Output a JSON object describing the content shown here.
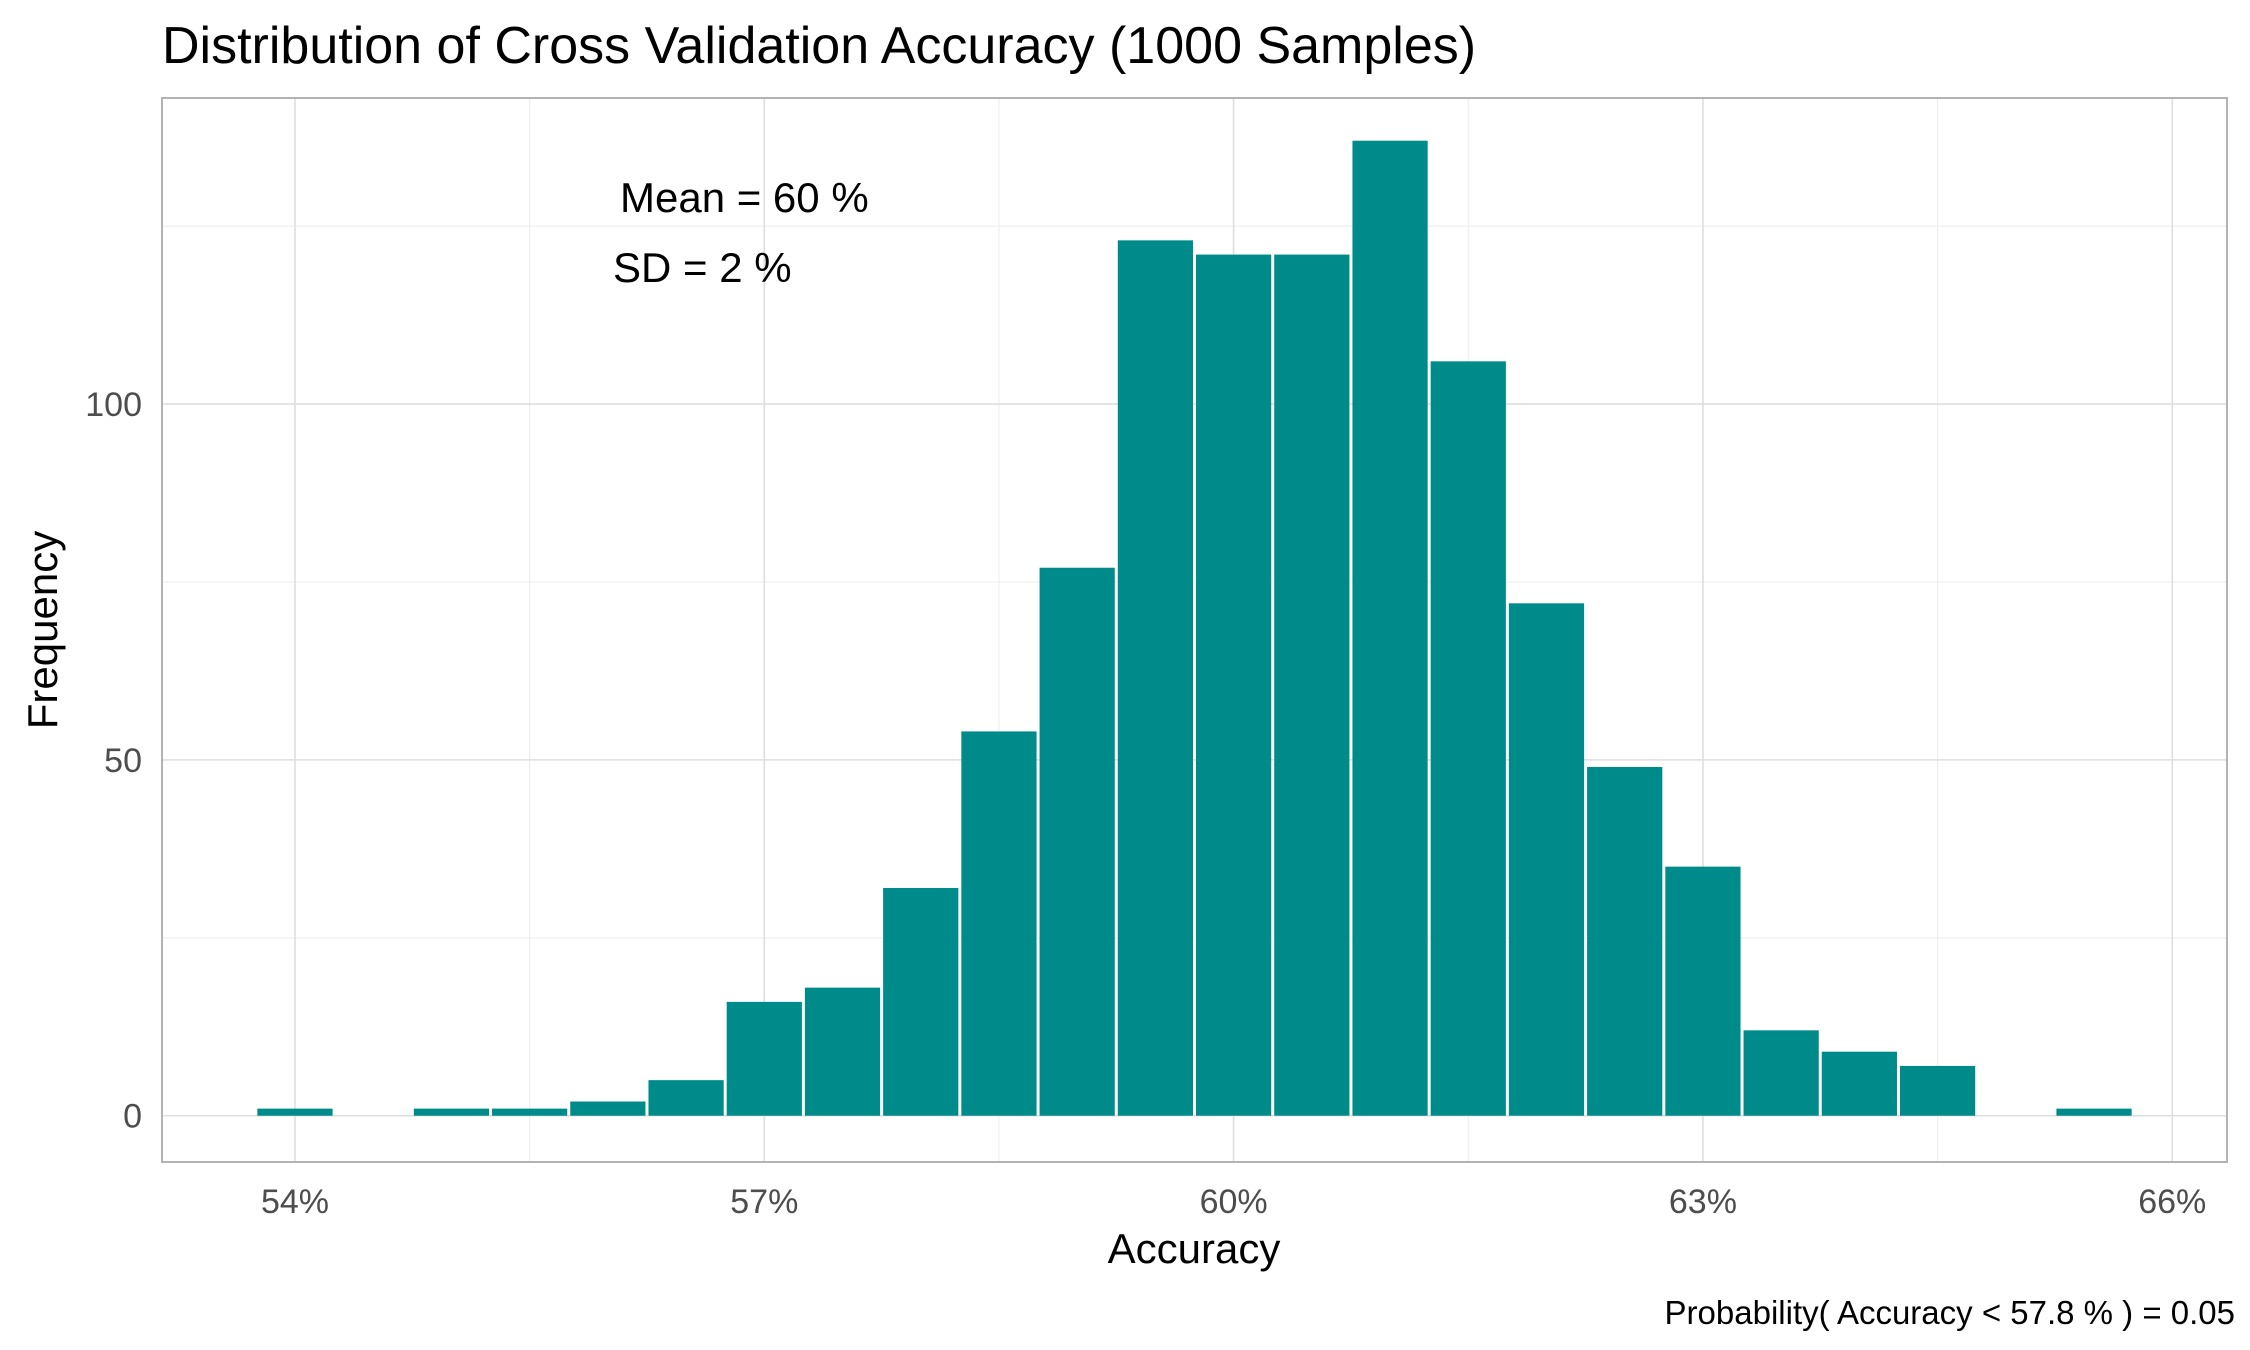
{
  "chart_data": {
    "type": "bar",
    "title": "Distribution of Cross Validation Accuracy (1000 Samples)",
    "xlabel": "Accuracy",
    "ylabel": "Frequency",
    "x_ticks": [
      {
        "value": 54,
        "label": "54%"
      },
      {
        "value": 57,
        "label": "57%"
      },
      {
        "value": 60,
        "label": "60%"
      },
      {
        "value": 63,
        "label": "63%"
      },
      {
        "value": 66,
        "label": "66%"
      }
    ],
    "y_ticks": [
      {
        "value": 0,
        "label": "0"
      },
      {
        "value": 50,
        "label": "50"
      },
      {
        "value": 100,
        "label": "100"
      }
    ],
    "xlim": [
      53.15,
      66.35
    ],
    "ylim": [
      -6.5,
      143
    ],
    "bin_width": 0.5,
    "bins": [
      {
        "x": 54.0,
        "count": 1
      },
      {
        "x": 55.0,
        "count": 1
      },
      {
        "x": 55.5,
        "count": 1
      },
      {
        "x": 56.0,
        "count": 2
      },
      {
        "x": 56.5,
        "count": 5
      },
      {
        "x": 57.0,
        "count": 16
      },
      {
        "x": 57.5,
        "count": 18
      },
      {
        "x": 58.0,
        "count": 32
      },
      {
        "x": 58.5,
        "count": 54
      },
      {
        "x": 59.0,
        "count": 77
      },
      {
        "x": 59.5,
        "count": 123
      },
      {
        "x": 60.0,
        "count": 121
      },
      {
        "x": 60.5,
        "count": 121
      },
      {
        "x": 61.0,
        "count": 137
      },
      {
        "x": 61.5,
        "count": 106
      },
      {
        "x": 62.0,
        "count": 72
      },
      {
        "x": 62.5,
        "count": 49
      },
      {
        "x": 63.0,
        "count": 35
      },
      {
        "x": 63.5,
        "count": 12
      },
      {
        "x": 64.0,
        "count": 9
      },
      {
        "x": 64.5,
        "count": 7
      },
      {
        "x": 65.5,
        "count": 1
      }
    ],
    "grid": true,
    "bar_color": "#008B8B",
    "annotations": {
      "mean": "Mean =  60 %",
      "sd": "SD =  2 %"
    },
    "caption": "Probability( Accuracy <  57.8 % ) = 0.05"
  }
}
